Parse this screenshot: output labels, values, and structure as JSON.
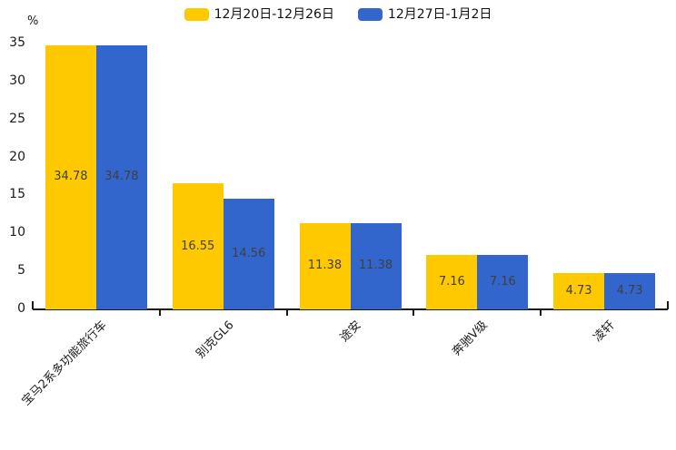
{
  "chart_data": {
    "type": "bar",
    "unit_label": "%",
    "categories": [
      "宝马2系多功能旅行车",
      "别克GL6",
      "途安",
      "奔驰V级",
      "凌轩"
    ],
    "series": [
      {
        "name": "12月20日-12月26日",
        "color": "#FFC900",
        "values": [
          34.78,
          16.55,
          11.38,
          7.16,
          4.73
        ]
      },
      {
        "name": "12月27日-1月2日",
        "color": "#3366CC",
        "values": [
          34.78,
          14.56,
          11.38,
          7.16,
          4.73
        ]
      }
    ],
    "ylim": [
      0,
      35
    ],
    "ytick_step": 5,
    "grid": false,
    "legend_position": "top",
    "value_labels_shown": true,
    "value_label_color": "#3f3f3f",
    "axis_color": "#1a1a1a",
    "background_color": "#ffffff"
  }
}
